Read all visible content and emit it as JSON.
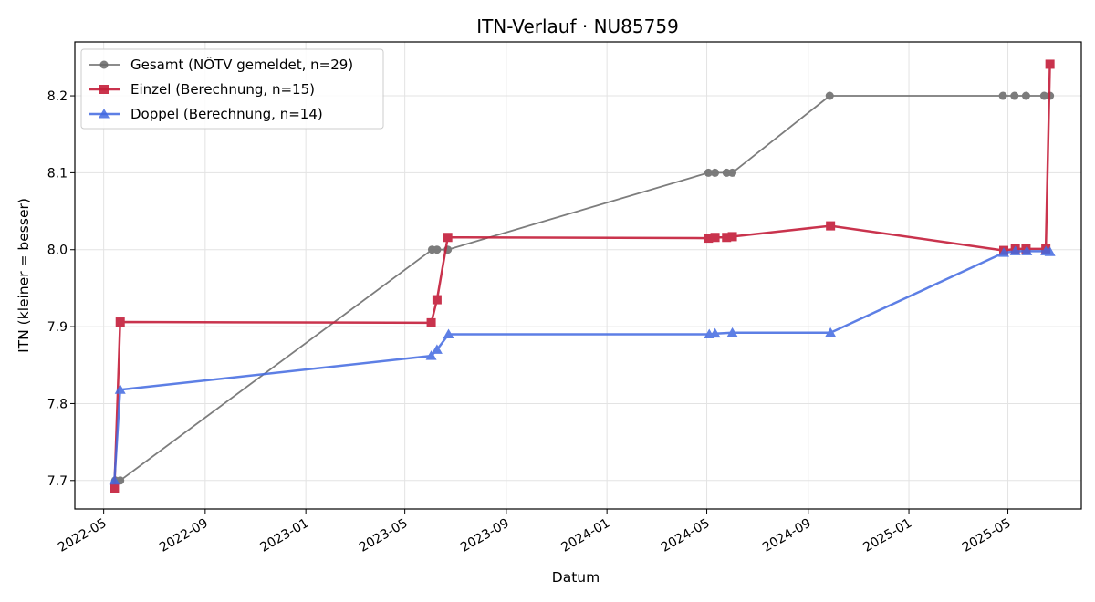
{
  "chart_data": {
    "type": "line",
    "title": "ITN-Verlauf · NU85759",
    "xlabel": "Datum",
    "ylabel": "ITN  (kleiner = besser)",
    "x_ticks": [
      "2022-05",
      "2022-09",
      "2023-01",
      "2023-05",
      "2023-09",
      "2024-01",
      "2024-05",
      "2024-09",
      "2025-01",
      "2025-05"
    ],
    "y_ticks": [
      "7.7",
      "7.8",
      "7.9",
      "8.0",
      "8.1",
      "8.2"
    ],
    "xlim": [
      "2022-03-27",
      "2025-07-29"
    ],
    "ylim": [
      7.663,
      8.27
    ],
    "grid": true,
    "legend_position": "top-left",
    "series": [
      {
        "name": "Gesamt (NÖTV gemeldet, n=29)",
        "color": "#666666",
        "marker": "circle",
        "points": [
          [
            "2022-05-15",
            7.7
          ],
          [
            "2022-05-21",
            7.7
          ],
          [
            "2023-06-03",
            8.0
          ],
          [
            "2023-06-09",
            8.0
          ],
          [
            "2023-06-22",
            8.0
          ],
          [
            "2024-05-03",
            8.1
          ],
          [
            "2024-05-11",
            8.1
          ],
          [
            "2024-05-25",
            8.1
          ],
          [
            "2024-06-01",
            8.1
          ],
          [
            "2024-09-27",
            8.2
          ],
          [
            "2025-04-25",
            8.2
          ],
          [
            "2025-05-09",
            8.2
          ],
          [
            "2025-05-23",
            8.2
          ],
          [
            "2025-06-14",
            8.2
          ],
          [
            "2025-06-21",
            8.2
          ]
        ]
      },
      {
        "name": "Einzel (Berechnung, n=15)",
        "color": "#c41e3a",
        "marker": "square",
        "points": [
          [
            "2022-05-14",
            7.69
          ],
          [
            "2022-05-21",
            7.906
          ],
          [
            "2023-06-02",
            7.905
          ],
          [
            "2023-06-09",
            7.935
          ],
          [
            "2023-06-22",
            8.016
          ],
          [
            "2024-05-03",
            8.015
          ],
          [
            "2024-05-11",
            8.016
          ],
          [
            "2024-05-25",
            8.016
          ],
          [
            "2024-06-01",
            8.017
          ],
          [
            "2024-09-28",
            8.031
          ],
          [
            "2025-04-26",
            7.999
          ],
          [
            "2025-05-10",
            8.001
          ],
          [
            "2025-05-23",
            8.001
          ],
          [
            "2025-06-16",
            8.001
          ],
          [
            "2025-06-21",
            8.241
          ]
        ]
      },
      {
        "name": "Doppel (Berechnung, n=14)",
        "color": "#4169e1",
        "marker": "triangle",
        "points": [
          [
            "2022-05-14",
            7.7
          ],
          [
            "2022-05-21",
            7.818
          ],
          [
            "2023-06-02",
            7.862
          ],
          [
            "2023-06-09",
            7.87
          ],
          [
            "2023-06-23",
            7.89
          ],
          [
            "2024-05-04",
            7.89
          ],
          [
            "2024-05-11",
            7.891
          ],
          [
            "2024-06-01",
            7.892
          ],
          [
            "2024-09-28",
            7.892
          ],
          [
            "2025-04-26",
            7.996
          ],
          [
            "2025-05-10",
            7.998
          ],
          [
            "2025-05-24",
            7.998
          ],
          [
            "2025-06-16",
            7.998
          ],
          [
            "2025-06-21",
            7.997
          ]
        ]
      }
    ]
  }
}
